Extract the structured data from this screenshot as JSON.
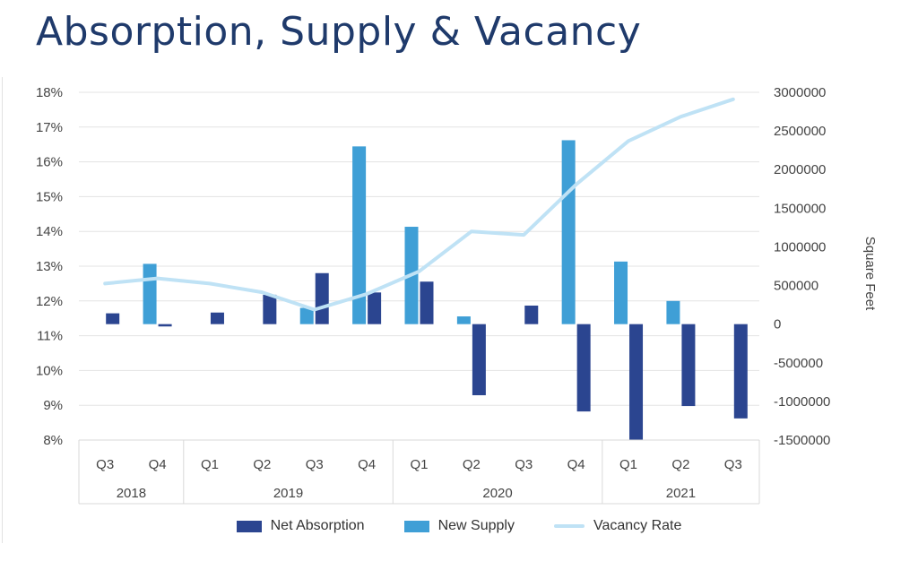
{
  "title": "Absorption, Supply & Vacancy",
  "colors": {
    "net_absorption": "#2b4590",
    "new_supply": "#3f9fd6",
    "vacancy_rate": "#bfe2f5",
    "title": "#1f3a6b"
  },
  "chart_data": {
    "type": "bar",
    "title": "",
    "categories": [
      "Q3",
      "Q4",
      "Q1",
      "Q2",
      "Q3",
      "Q4",
      "Q1",
      "Q2",
      "Q3",
      "Q4",
      "Q1",
      "Q2",
      "Q3"
    ],
    "groups": [
      {
        "label": "2018",
        "count": 2
      },
      {
        "label": "2019",
        "count": 4
      },
      {
        "label": "2020",
        "count": 4
      },
      {
        "label": "2021",
        "count": 3
      }
    ],
    "series": [
      {
        "name": "Net Absorption",
        "type": "bar",
        "axis": "right",
        "values": [
          140000,
          -30000,
          150000,
          380000,
          660000,
          410000,
          550000,
          -920000,
          240000,
          -1130000,
          -1500000,
          -1060000,
          -1220000
        ]
      },
      {
        "name": "New Supply",
        "type": "bar",
        "axis": "right",
        "values": [
          0,
          780000,
          0,
          0,
          210000,
          2300000,
          1260000,
          100000,
          0,
          2380000,
          810000,
          300000,
          0
        ]
      },
      {
        "name": "Vacancy Rate",
        "type": "line",
        "axis": "left",
        "values": [
          12.5,
          12.65,
          12.5,
          12.25,
          11.75,
          12.2,
          12.85,
          14.0,
          13.9,
          15.35,
          16.6,
          17.3,
          17.8
        ]
      }
    ],
    "y_left": {
      "min": 8,
      "max": 18,
      "ticks": [
        "18%",
        "17%",
        "16%",
        "15%",
        "14%",
        "13%",
        "12%",
        "11%",
        "10%",
        "9%",
        "8%"
      ]
    },
    "y_right": {
      "min": -1500000,
      "max": 3000000,
      "label": "Square Feet",
      "ticks": [
        "3000000",
        "2500000",
        "2000000",
        "1500000",
        "1000000",
        "500000",
        "0",
        "-500000",
        "-1000000",
        "-1500000"
      ]
    },
    "legend_position": "bottom",
    "grid": true
  }
}
